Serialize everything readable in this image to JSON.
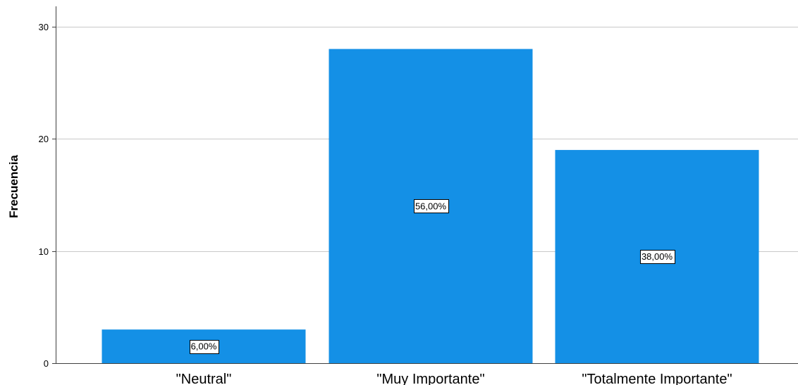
{
  "chart_data": {
    "type": "bar",
    "categories": [
      "\"Neutral\"",
      "\"Muy Importante\"",
      "\"Totalmente Importante\""
    ],
    "values": [
      3,
      28,
      19
    ],
    "data_labels": [
      "6,00%",
      "56,00%",
      "38,00%"
    ],
    "title": "",
    "xlabel": "",
    "ylabel": "Frecuencia",
    "ylim": [
      0,
      31.8
    ],
    "yticks": [
      0,
      10,
      20,
      30
    ],
    "grid": true,
    "bar_color": "#1490e6",
    "gridline_color": "#c8c8c8",
    "axis_color": "#404040"
  }
}
